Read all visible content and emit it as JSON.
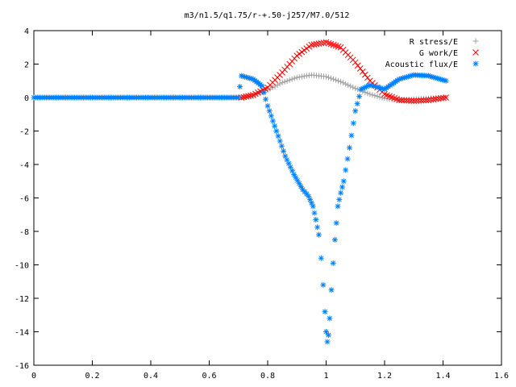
{
  "chart_data": {
    "type": "scatter",
    "title": "m3/n1.5/q1.75/r-+.50-j257/M7.0/512",
    "xlabel": "",
    "ylabel": "",
    "xlim": [
      0,
      1.6
    ],
    "ylim": [
      -16,
      4
    ],
    "x_ticks": [
      "0",
      "0.2",
      "0.4",
      "0.6",
      "0.8",
      "1",
      "1.2",
      "1.4",
      "1.6"
    ],
    "y_ticks": [
      "4",
      "2",
      "0",
      "-2",
      "-4",
      "-6",
      "-8",
      "-10",
      "-12",
      "-14",
      "-16"
    ],
    "grid": false,
    "legend_position": "top-right",
    "series": [
      {
        "name": "R stress/E",
        "marker": "plus",
        "color": "#a0a0a0",
        "points": [
          [
            0.71,
            0.0
          ],
          [
            0.75,
            0.1
          ],
          [
            0.8,
            0.45
          ],
          [
            0.85,
            0.9
          ],
          [
            0.9,
            1.2
          ],
          [
            0.95,
            1.35
          ],
          [
            1.0,
            1.25
          ],
          [
            1.05,
            0.95
          ],
          [
            1.1,
            0.55
          ],
          [
            1.15,
            0.2
          ],
          [
            1.2,
            -0.05
          ],
          [
            1.25,
            -0.15
          ],
          [
            1.3,
            -0.1
          ],
          [
            1.35,
            -0.05
          ],
          [
            1.41,
            0.0
          ]
        ]
      },
      {
        "name": "G work/E",
        "marker": "x",
        "color": "#ff0000",
        "points": [
          [
            0.71,
            0.0
          ],
          [
            0.75,
            0.15
          ],
          [
            0.8,
            0.6
          ],
          [
            0.85,
            1.5
          ],
          [
            0.9,
            2.5
          ],
          [
            0.95,
            3.15
          ],
          [
            1.0,
            3.3
          ],
          [
            1.05,
            3.0
          ],
          [
            1.1,
            2.1
          ],
          [
            1.15,
            1.0
          ],
          [
            1.2,
            0.2
          ],
          [
            1.25,
            -0.15
          ],
          [
            1.3,
            -0.2
          ],
          [
            1.35,
            -0.15
          ],
          [
            1.41,
            0.0
          ]
        ]
      },
      {
        "name": "Acoustic flux/E",
        "marker": "star",
        "color": "#0080ff",
        "points": [
          [
            0.0,
            0.0
          ],
          [
            0.2,
            0.0
          ],
          [
            0.4,
            0.0
          ],
          [
            0.6,
            0.0
          ],
          [
            0.7,
            0.0
          ],
          [
            0.71,
            1.3
          ],
          [
            0.75,
            1.1
          ],
          [
            0.78,
            0.7
          ],
          [
            0.8,
            -0.5
          ],
          [
            0.83,
            -2.0
          ],
          [
            0.86,
            -3.5
          ],
          [
            0.89,
            -4.6
          ],
          [
            0.92,
            -5.5
          ],
          [
            0.94,
            -5.9
          ],
          [
            0.955,
            -6.5
          ],
          [
            0.965,
            -7.3
          ],
          [
            0.975,
            -8.2
          ],
          [
            0.983,
            -9.6
          ],
          [
            0.99,
            -11.2
          ],
          [
            0.996,
            -12.8
          ],
          [
            1.0,
            -14.0
          ],
          [
            1.004,
            -14.6
          ],
          [
            1.008,
            -14.2
          ],
          [
            1.012,
            -13.2
          ],
          [
            1.018,
            -11.5
          ],
          [
            1.024,
            -9.9
          ],
          [
            1.03,
            -8.5
          ],
          [
            1.035,
            -7.5
          ],
          [
            1.04,
            -6.5
          ],
          [
            1.05,
            -5.7
          ],
          [
            1.06,
            -5.0
          ],
          [
            1.08,
            -3.0
          ],
          [
            1.1,
            -0.8
          ],
          [
            1.12,
            0.5
          ],
          [
            1.15,
            0.75
          ],
          [
            1.2,
            0.5
          ],
          [
            1.25,
            1.1
          ],
          [
            1.3,
            1.35
          ],
          [
            1.35,
            1.3
          ],
          [
            1.41,
            1.0
          ]
        ]
      }
    ]
  }
}
